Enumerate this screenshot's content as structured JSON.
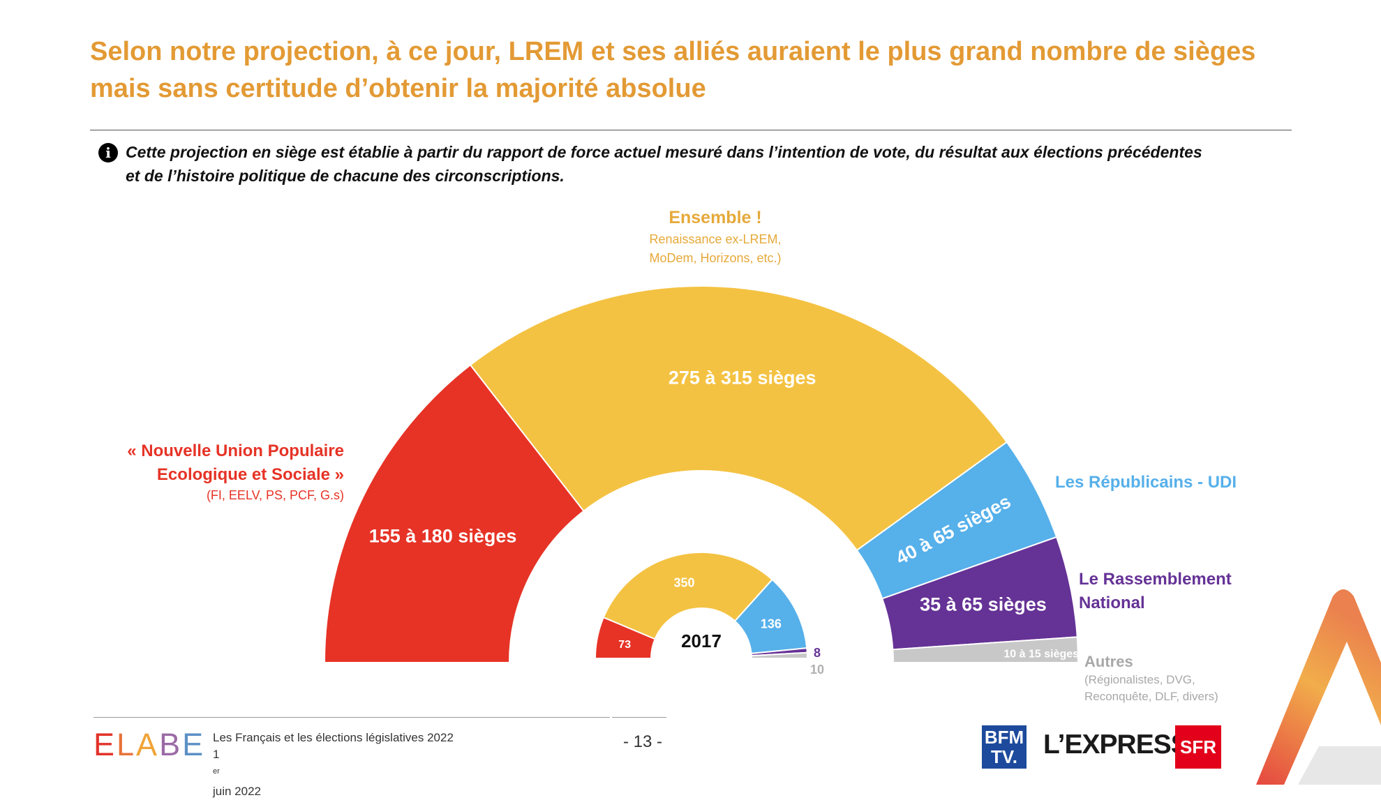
{
  "title": {
    "line1": "Selon notre projection, à ce jour, LREM et ses alliés auraient le plus grand nombre de sièges",
    "line2": "mais sans certitude d’obtenir la majorité absolue"
  },
  "info": {
    "icon": "info-icon",
    "line1": "Cette projection en siège est établie à partir du rapport de force actuel mesuré dans l’intention de vote, du résultat aux élections précédentes",
    "line2": "et de l’histoire politique de chacune des circonscriptions."
  },
  "chart_data": {
    "type": "semicircle",
    "projection": {
      "series": [
        {
          "name": "« Nouvelle Union Populaire Ecologique et Sociale »",
          "detail": "(FI, EELV, PS, PCF, G.s)",
          "label": "155 à 180 sièges",
          "min": 155,
          "max": 180,
          "color": "#E63326"
        },
        {
          "name": "Ensemble !",
          "detail_line1": "Renaissance ex-LREM,",
          "detail_line2": "MoDem, Horizons, etc.)",
          "label": "275 à 315 sièges",
          "min": 275,
          "max": 315,
          "color": "#F4C242"
        },
        {
          "name": "Les Républicains - UDI",
          "label": "40 à 65 sièges",
          "min": 40,
          "max": 65,
          "color": "#56B0EA"
        },
        {
          "name": "Le Rassemblement National",
          "label": "35 à 65 sièges",
          "min": 35,
          "max": 65,
          "color": "#653296"
        },
        {
          "name": "Autres",
          "detail_line1": "(Régionalistes, DVG,",
          "detail_line2": "Reconquête, DLF, divers)",
          "label": "10 à 15 sièges",
          "min": 10,
          "max": 15,
          "color": "#C8C8C8"
        }
      ]
    },
    "result_2017": {
      "title": "2017",
      "series": [
        {
          "label": "73",
          "value": 73,
          "color": "#E63326"
        },
        {
          "label": "350",
          "value": 350,
          "color": "#F4C242"
        },
        {
          "label": "136",
          "value": 136,
          "color": "#56B0EA"
        },
        {
          "label": "8",
          "value": 8,
          "color": "#653296"
        },
        {
          "label": "10",
          "value": 10,
          "color": "#C8C8C8"
        }
      ]
    }
  },
  "labels": {
    "nupes_line1": "« Nouvelle Union Populaire",
    "nupes_line2": "Ecologique et Sociale »",
    "nupes_detail": "(FI, EELV, PS, PCF, G.s)",
    "ensemble": "Ensemble !",
    "ensemble_detail1": "Renaissance ex-LREM,",
    "ensemble_detail2": "MoDem, Horizons, etc.)",
    "lr": "Les Républicains - UDI",
    "rn_line1": "Le Rassemblement",
    "rn_line2": "National",
    "autres": "Autres",
    "autres_detail1": "(Régionalistes, DVG,",
    "autres_detail2": "Reconquête, DLF, divers)"
  },
  "footer": {
    "brand": {
      "e1": "E",
      "l": "L",
      "a": "A",
      "b": "B",
      "e2": "E"
    },
    "study_line1": "Les Français et les élections législatives 2022",
    "study_day": "1",
    "study_sup": "er",
    "study_rest": " juin 2022",
    "page": "- 13 -",
    "logo_bfm_1": "BFM",
    "logo_bfm_2": "TV.",
    "logo_express": "L’EXPRESS",
    "logo_sfr": "SFR"
  },
  "colors": {
    "title": "#E39A34",
    "nupes": "#E63326",
    "ensemble": "#F4C242",
    "ensemble_label": "#E6A93A",
    "lr": "#56B0EA",
    "rn": "#653296",
    "autres": "#A8A8A8"
  }
}
